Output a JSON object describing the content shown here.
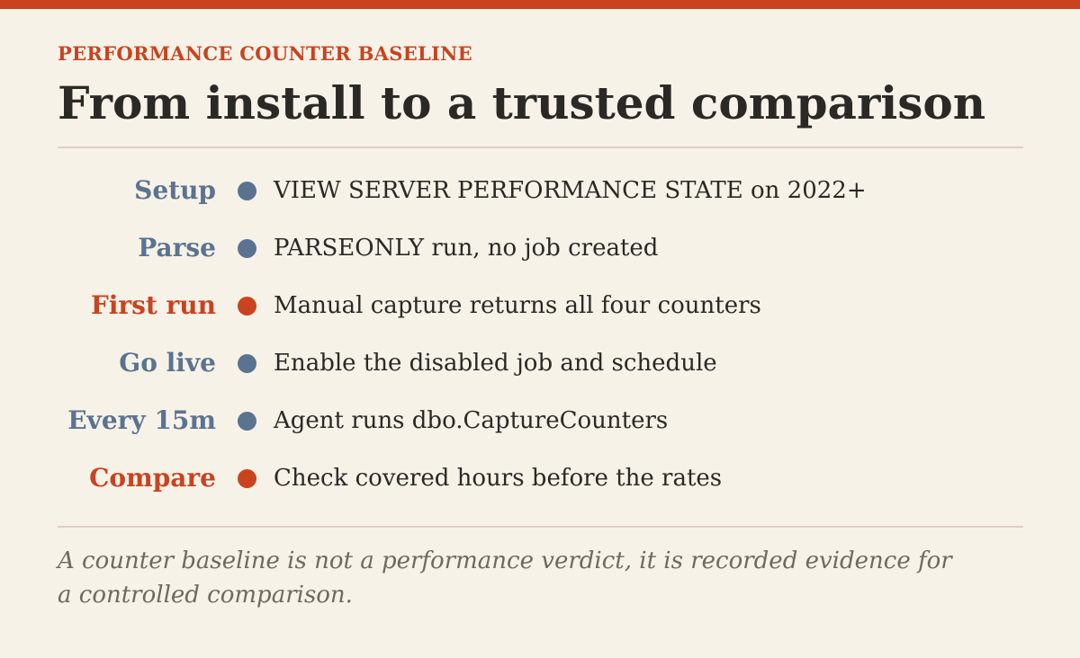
{
  "colors": {
    "accent": "#c9431f",
    "muted": "#5a7390",
    "background": "#f7f2e8",
    "text": "#2b2926",
    "rule": "#ddd0c0",
    "footnote": "#6e6961"
  },
  "header": {
    "eyebrow": "PERFORMANCE COUNTER BASELINE",
    "title": "From install to a trusted comparison"
  },
  "steps": [
    {
      "label": "Setup",
      "text": "VIEW SERVER PERFORMANCE STATE on 2022+",
      "highlight": false
    },
    {
      "label": "Parse",
      "text": "PARSEONLY run, no job created",
      "highlight": false
    },
    {
      "label": "First run",
      "text": "Manual capture returns all four counters",
      "highlight": true
    },
    {
      "label": "Go live",
      "text": "Enable the disabled job and schedule",
      "highlight": false
    },
    {
      "label": "Every 15m",
      "text": "Agent runs dbo.CaptureCounters",
      "highlight": false
    },
    {
      "label": "Compare",
      "text": "Check covered hours before the rates",
      "highlight": true
    }
  ],
  "footnote": "A counter baseline is not a performance verdict, it is recorded evidence for a controlled comparison."
}
